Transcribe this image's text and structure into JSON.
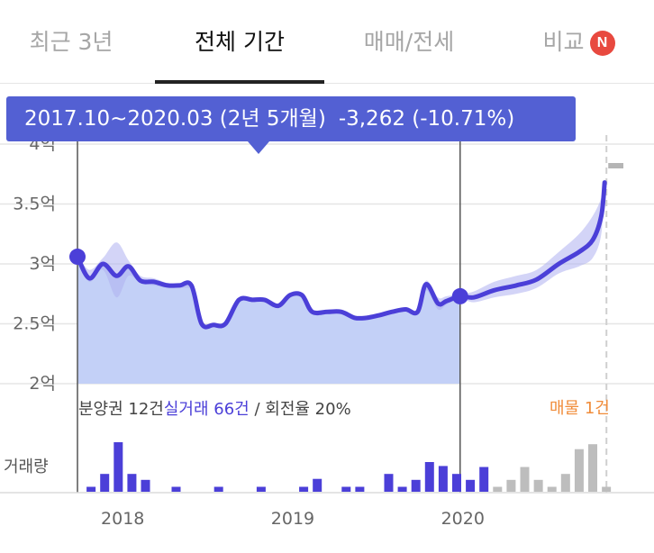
{
  "tabs": [
    {
      "label": "최근 3년",
      "active": false
    },
    {
      "label": "전체 기간",
      "active": true
    },
    {
      "label": "매매/전세",
      "active": false
    },
    {
      "label": "비교",
      "active": false,
      "badge": "N"
    }
  ],
  "tooltip": {
    "period": "2017.10~2020.03 (2년 5개월)",
    "change": "-3,262 (-10.71%)"
  },
  "summary": {
    "presale": "분양권 12건",
    "real_trades": "실거래 66건",
    "separator": " / ",
    "turnover": "회전율 20%"
  },
  "listing": "매물 1건",
  "volume_label": "거래량",
  "colors": {
    "line": "#4b3fd8",
    "area": "#c3d0f7",
    "band": "#aeb0f0",
    "bar_actual": "#4b3fd8",
    "bar_other": "#bdbdbd",
    "tooltip": "#5360d3",
    "listing_text": "#f08c3a",
    "listing_line": "#b5b5b5",
    "badge": "#e8493f"
  },
  "chart_data": {
    "type": "line",
    "y_ticks": [
      {
        "value": 4,
        "label": "4억"
      },
      {
        "value": 3.5,
        "label": "3.5억"
      },
      {
        "value": 3,
        "label": "3억"
      },
      {
        "value": 2.5,
        "label": "2.5억"
      },
      {
        "value": 2,
        "label": "2억"
      }
    ],
    "ylim": [
      2,
      4
    ],
    "xlim": [
      2017.75,
      2021.05
    ],
    "x_ticks": [
      {
        "value": 2018,
        "label": "2018"
      },
      {
        "value": 2019,
        "label": "2019"
      },
      {
        "value": 2020,
        "label": "2020"
      }
    ],
    "price": [
      [
        2017.75,
        3.06
      ],
      [
        2017.82,
        2.88
      ],
      [
        2017.9,
        3.0
      ],
      [
        2017.98,
        2.9
      ],
      [
        2018.05,
        2.98
      ],
      [
        2018.12,
        2.86
      ],
      [
        2018.2,
        2.85
      ],
      [
        2018.28,
        2.82
      ],
      [
        2018.35,
        2.82
      ],
      [
        2018.42,
        2.82
      ],
      [
        2018.48,
        2.5
      ],
      [
        2018.55,
        2.49
      ],
      [
        2018.62,
        2.5
      ],
      [
        2018.7,
        2.7
      ],
      [
        2018.78,
        2.7
      ],
      [
        2018.85,
        2.7
      ],
      [
        2018.93,
        2.65
      ],
      [
        2019.0,
        2.74
      ],
      [
        2019.07,
        2.74
      ],
      [
        2019.13,
        2.6
      ],
      [
        2019.22,
        2.6
      ],
      [
        2019.3,
        2.6
      ],
      [
        2019.38,
        2.55
      ],
      [
        2019.45,
        2.55
      ],
      [
        2019.52,
        2.57
      ],
      [
        2019.6,
        2.6
      ],
      [
        2019.68,
        2.62
      ],
      [
        2019.75,
        2.6
      ],
      [
        2019.8,
        2.83
      ],
      [
        2019.87,
        2.67
      ],
      [
        2019.92,
        2.69
      ],
      [
        2020.0,
        2.73
      ],
      [
        2020.08,
        2.72
      ],
      [
        2020.2,
        2.78
      ],
      [
        2020.33,
        2.82
      ],
      [
        2020.45,
        2.87
      ],
      [
        2020.58,
        3.0
      ],
      [
        2020.7,
        3.1
      ],
      [
        2020.78,
        3.2
      ],
      [
        2020.83,
        3.4
      ],
      [
        2020.85,
        3.68
      ]
    ],
    "band_upper": [
      [
        2017.75,
        3.08
      ],
      [
        2017.82,
        2.95
      ],
      [
        2017.9,
        3.05
      ],
      [
        2017.98,
        3.18
      ],
      [
        2018.05,
        3.03
      ],
      [
        2018.12,
        2.9
      ],
      [
        2018.2,
        2.88
      ],
      [
        2018.28,
        2.84
      ],
      [
        2018.35,
        2.84
      ],
      [
        2018.42,
        2.84
      ],
      [
        2019.75,
        2.63
      ],
      [
        2019.8,
        2.86
      ],
      [
        2019.87,
        2.72
      ],
      [
        2019.92,
        2.73
      ],
      [
        2020.0,
        2.75
      ],
      [
        2020.08,
        2.77
      ],
      [
        2020.2,
        2.85
      ],
      [
        2020.33,
        2.9
      ],
      [
        2020.45,
        2.95
      ],
      [
        2020.58,
        3.1
      ],
      [
        2020.7,
        3.25
      ],
      [
        2020.78,
        3.4
      ],
      [
        2020.83,
        3.55
      ],
      [
        2020.85,
        3.68
      ]
    ],
    "band_lower": [
      [
        2017.75,
        3.04
      ],
      [
        2017.82,
        2.85
      ],
      [
        2017.9,
        2.95
      ],
      [
        2017.98,
        2.72
      ],
      [
        2018.05,
        2.9
      ],
      [
        2018.12,
        2.84
      ],
      [
        2018.2,
        2.82
      ],
      [
        2018.28,
        2.8
      ],
      [
        2018.35,
        2.8
      ],
      [
        2018.42,
        2.8
      ],
      [
        2019.75,
        2.58
      ],
      [
        2019.8,
        2.78
      ],
      [
        2019.87,
        2.62
      ],
      [
        2019.92,
        2.66
      ],
      [
        2020.0,
        2.71
      ],
      [
        2020.08,
        2.68
      ],
      [
        2020.2,
        2.72
      ],
      [
        2020.33,
        2.75
      ],
      [
        2020.45,
        2.8
      ],
      [
        2020.58,
        2.92
      ],
      [
        2020.7,
        2.98
      ],
      [
        2020.78,
        3.05
      ],
      [
        2020.83,
        3.25
      ],
      [
        2020.85,
        3.68
      ]
    ],
    "selection": {
      "start": 2017.75,
      "end": 2020.0,
      "start_value": 3.06,
      "end_value": 2.73
    },
    "listing_start": 2020.85,
    "listing_value": 3.82,
    "volume": {
      "ymax": 5,
      "bars": [
        {
          "x": 2017.83,
          "v": 0.5,
          "kind": "actual"
        },
        {
          "x": 2017.91,
          "v": 1.8,
          "kind": "actual"
        },
        {
          "x": 2017.99,
          "v": 5.0,
          "kind": "actual"
        },
        {
          "x": 2018.07,
          "v": 1.8,
          "kind": "actual"
        },
        {
          "x": 2018.15,
          "v": 1.2,
          "kind": "actual"
        },
        {
          "x": 2018.33,
          "v": 0.5,
          "kind": "actual"
        },
        {
          "x": 2018.58,
          "v": 0.5,
          "kind": "actual"
        },
        {
          "x": 2018.83,
          "v": 0.5,
          "kind": "actual"
        },
        {
          "x": 2019.08,
          "v": 0.5,
          "kind": "actual"
        },
        {
          "x": 2019.16,
          "v": 1.3,
          "kind": "actual"
        },
        {
          "x": 2019.33,
          "v": 0.5,
          "kind": "actual"
        },
        {
          "x": 2019.41,
          "v": 0.5,
          "kind": "actual"
        },
        {
          "x": 2019.58,
          "v": 1.8,
          "kind": "actual"
        },
        {
          "x": 2019.66,
          "v": 0.5,
          "kind": "actual"
        },
        {
          "x": 2019.74,
          "v": 1.2,
          "kind": "actual"
        },
        {
          "x": 2019.82,
          "v": 3.0,
          "kind": "actual"
        },
        {
          "x": 2019.9,
          "v": 2.6,
          "kind": "actual"
        },
        {
          "x": 2019.98,
          "v": 1.8,
          "kind": "actual"
        },
        {
          "x": 2020.06,
          "v": 1.2,
          "kind": "actual"
        },
        {
          "x": 2020.14,
          "v": 2.5,
          "kind": "actual"
        },
        {
          "x": 2020.22,
          "v": 0.5,
          "kind": "other"
        },
        {
          "x": 2020.3,
          "v": 1.2,
          "kind": "other"
        },
        {
          "x": 2020.38,
          "v": 2.5,
          "kind": "other"
        },
        {
          "x": 2020.46,
          "v": 1.2,
          "kind": "other"
        },
        {
          "x": 2020.54,
          "v": 0.5,
          "kind": "other"
        },
        {
          "x": 2020.62,
          "v": 1.8,
          "kind": "other"
        },
        {
          "x": 2020.7,
          "v": 4.3,
          "kind": "other"
        },
        {
          "x": 2020.78,
          "v": 4.8,
          "kind": "other"
        },
        {
          "x": 2020.86,
          "v": 0.5,
          "kind": "other"
        }
      ]
    }
  }
}
